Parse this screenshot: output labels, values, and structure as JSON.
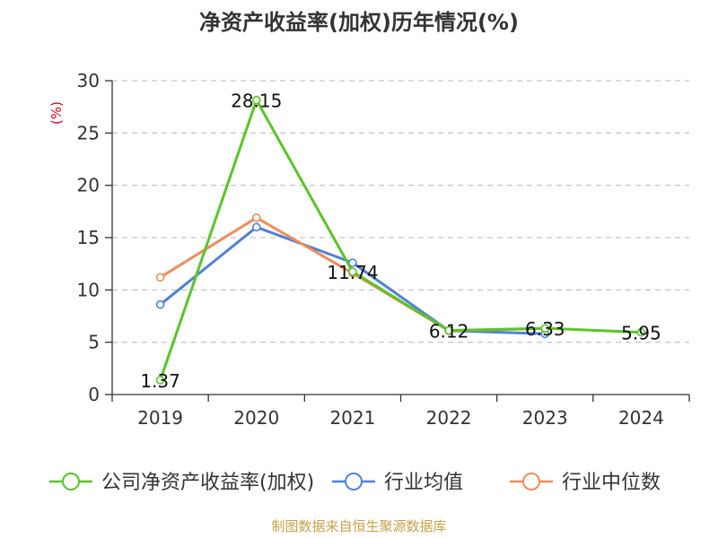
{
  "chart_data": {
    "type": "line",
    "title": "净资产收益率(加权)历年情况(%)",
    "ylabel": "(%)",
    "categories": [
      "2019",
      "2020",
      "2021",
      "2022",
      "2023",
      "2024"
    ],
    "ylim": [
      0,
      30
    ],
    "yticks": [
      0,
      5,
      10,
      15,
      20,
      25,
      30
    ],
    "grid": true,
    "legend_position": "bottom",
    "series": [
      {
        "name": "公司净资产收益率(加权)",
        "color": "#5ac528",
        "values": [
          1.37,
          28.15,
          11.74,
          6.12,
          6.33,
          5.95
        ],
        "labels": [
          "1.37",
          "28.15",
          "11.74",
          "6.12",
          "6.33",
          "5.95"
        ]
      },
      {
        "name": "行业均值",
        "color": "#4f81d9",
        "values": [
          8.6,
          16.0,
          12.6,
          6.1,
          5.8,
          null
        ]
      },
      {
        "name": "行业中位数",
        "color": "#f08c5a",
        "values": [
          11.2,
          16.9,
          11.6,
          6.1,
          6.3,
          null
        ]
      }
    ]
  },
  "source": "制图数据来自恒生聚源数据库"
}
